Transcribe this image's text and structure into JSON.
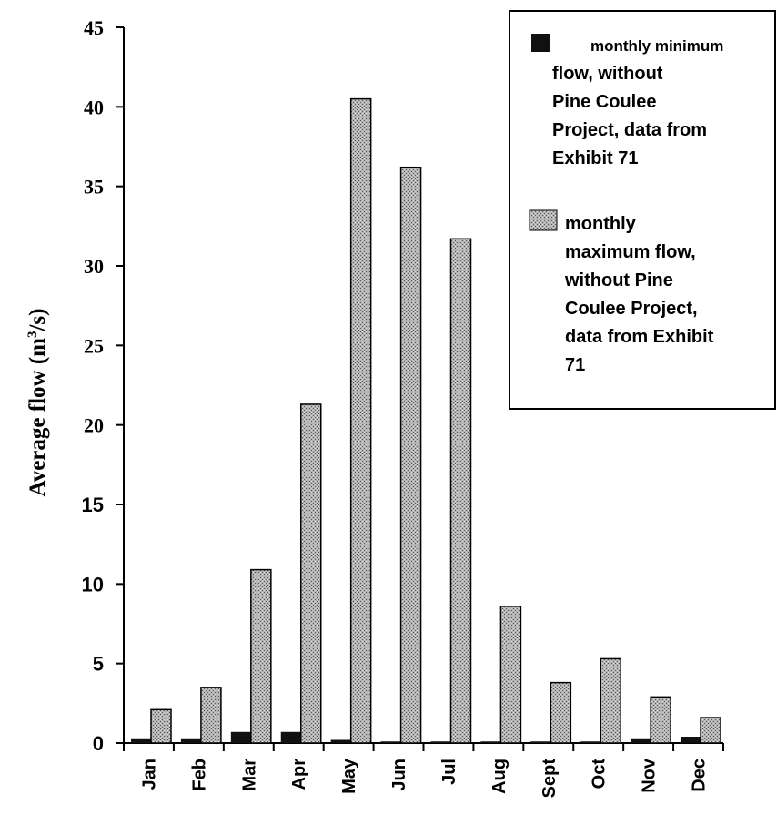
{
  "chart_data": {
    "type": "bar",
    "categories": [
      "Jan",
      "Feb",
      "Mar",
      "Apr",
      "May",
      "Jun",
      "Jul",
      "Aug",
      "Sept",
      "Oct",
      "Nov",
      "Dec"
    ],
    "series": [
      {
        "name": "monthly minimum flow, without Pine Coulee Project, data from Exhibit 71",
        "name_lines": [
          "monthly minimum",
          "flow, without",
          "Pine Coulee",
          "Project, data from",
          "Exhibit 71"
        ],
        "values": [
          0.3,
          0.3,
          0.7,
          0.7,
          0.2,
          0.1,
          0.1,
          0.1,
          0.1,
          0.1,
          0.3,
          0.4
        ],
        "color": "#111111"
      },
      {
        "name": "monthly maximum flow, without Pine Coulee Project, data from Exhibit 71",
        "name_lines": [
          "monthly",
          "maximum flow,",
          "without Pine",
          "Coulee Project,",
          "data from Exhibit",
          "71"
        ],
        "values": [
          2.1,
          3.5,
          10.9,
          21.3,
          40.5,
          36.2,
          31.7,
          8.6,
          3.8,
          5.3,
          2.9,
          1.6
        ],
        "color": "#a9a9a9"
      }
    ],
    "ylabel": "Average flow (m³/s)",
    "ylabel_parts": {
      "pre": "Average flow (m",
      "sup": "3",
      "post": "/s)"
    },
    "xlabel": "",
    "ylim": [
      0,
      45
    ],
    "yticks": [
      "0",
      "5",
      "10",
      "15",
      "20",
      "25",
      "30",
      "35",
      "40",
      "45"
    ],
    "grid": false,
    "legend_position": "top-right"
  }
}
